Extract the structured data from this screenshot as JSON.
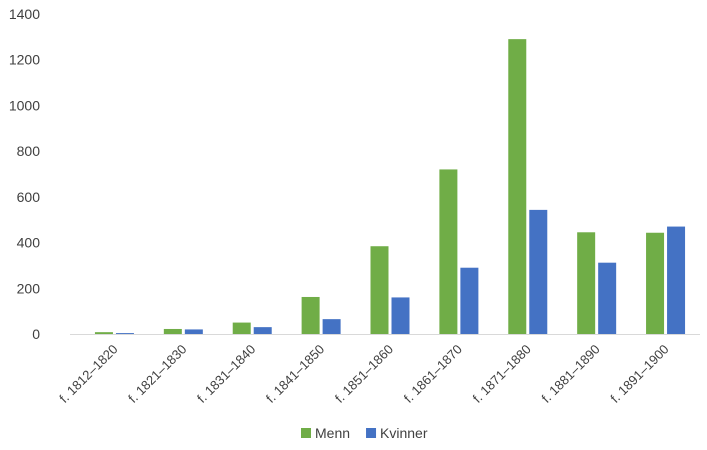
{
  "chart_data": {
    "type": "bar",
    "categories": [
      "f. 1812–1820",
      "f. 1821–1830",
      "f. 1831–1840",
      "f. 1841–1850",
      "f. 1851–1860",
      "f. 1861–1870",
      "f. 1871–1880",
      "f. 1881–1890",
      "f. 1891–1900"
    ],
    "series": [
      {
        "name": "Menn",
        "color": "#70ad47",
        "values": [
          8,
          22,
          50,
          162,
          384,
          720,
          1290,
          445,
          443
        ]
      },
      {
        "name": "Kvinner",
        "color": "#4472c4",
        "values": [
          4,
          20,
          30,
          65,
          160,
          290,
          543,
          312,
          470
        ]
      }
    ],
    "ylim": [
      0,
      1400
    ],
    "yticks": [
      0,
      200,
      400,
      600,
      800,
      1000,
      1200,
      1400
    ],
    "grid": false,
    "legend_position": "bottom",
    "title": "",
    "xlabel": "",
    "ylabel": ""
  }
}
